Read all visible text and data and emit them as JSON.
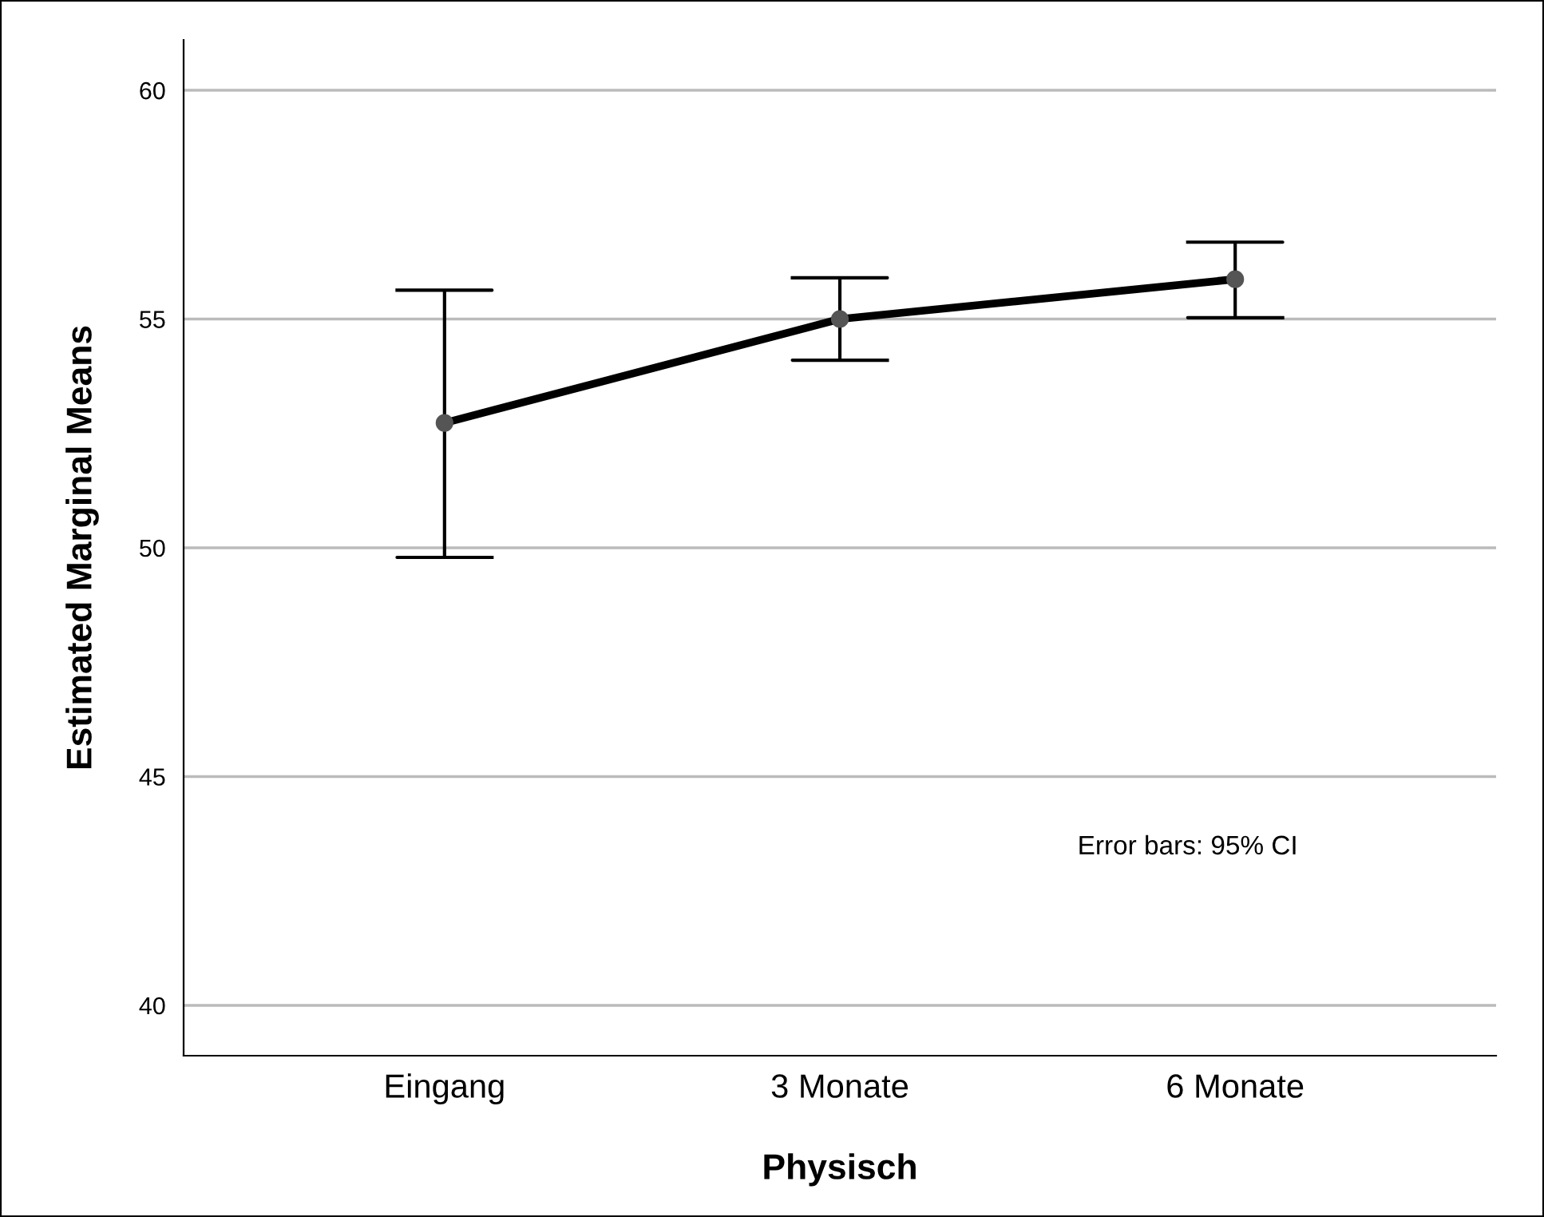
{
  "chart_data": {
    "type": "line",
    "xlabel": "Physisch",
    "ylabel": "Estimated Marginal Means",
    "categories": [
      "Eingang",
      "3 Monate",
      "6 Monate"
    ],
    "series": [
      {
        "color": "#000000",
        "values": [
          52.73,
          55.0,
          55.87
        ],
        "errors": [
          [
            49.79,
            55.63
          ],
          [
            54.1,
            55.9
          ],
          [
            55.03,
            56.68
          ]
        ]
      }
    ],
    "ylim": [
      38.9,
      61.1
    ],
    "yticks": [
      40,
      45,
      50,
      55,
      60
    ],
    "grid": "y",
    "marker": "circle",
    "line_style": "solid",
    "annotations": [
      "Error bars: 95% CI"
    ]
  }
}
